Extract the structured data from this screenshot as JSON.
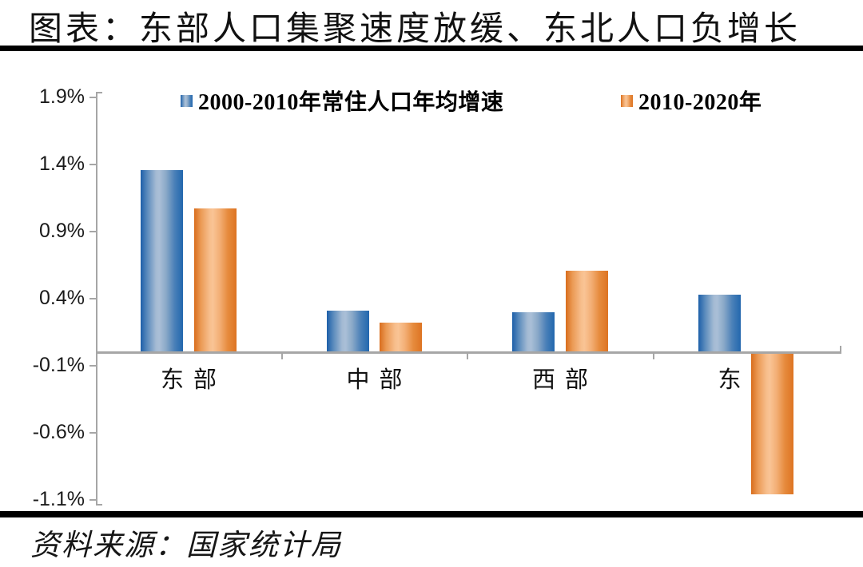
{
  "title": "图表：东部人口集聚速度放缓、东北人口负增长",
  "source": "资料来源：国家统计局",
  "legend": [
    {
      "label": "2000-2010年常住人口年均增速",
      "color": "#2e74b5"
    },
    {
      "label": "2010-2020年",
      "color": "#ed7d31"
    }
  ],
  "chart_data": {
    "type": "bar",
    "title": "图表：东部人口集聚速度放缓、东北人口负增长",
    "categories": [
      "东部",
      "中部",
      "西部",
      "东北"
    ],
    "series": [
      {
        "name": "2000-2010年常住人口年均增速",
        "color": "#2e74b5",
        "values": [
          1.36,
          0.31,
          0.3,
          0.43
        ]
      },
      {
        "name": "2010-2020年",
        "color": "#ed7d31",
        "values": [
          1.07,
          0.22,
          0.61,
          -1.06
        ]
      }
    ],
    "unit": "%",
    "ylim": [
      -1.1,
      1.9
    ],
    "yticks": [
      "1.9%",
      "1.4%",
      "0.9%",
      "0.4%",
      "-0.1%",
      "-0.6%",
      "-1.1%"
    ],
    "ytick_values": [
      1.9,
      1.4,
      0.9,
      0.4,
      -0.1,
      -0.6,
      -1.1
    ],
    "grid": false,
    "legend_position": "top",
    "source_note": "资料来源：国家统计局"
  },
  "colors": {
    "axis": "#a6a6a6",
    "blue_edge": "#1d5fa9",
    "blue_light": "#aabfd7",
    "orange_edge": "#dd6f1f",
    "orange_light": "#f9c495",
    "rule": "#000000"
  }
}
